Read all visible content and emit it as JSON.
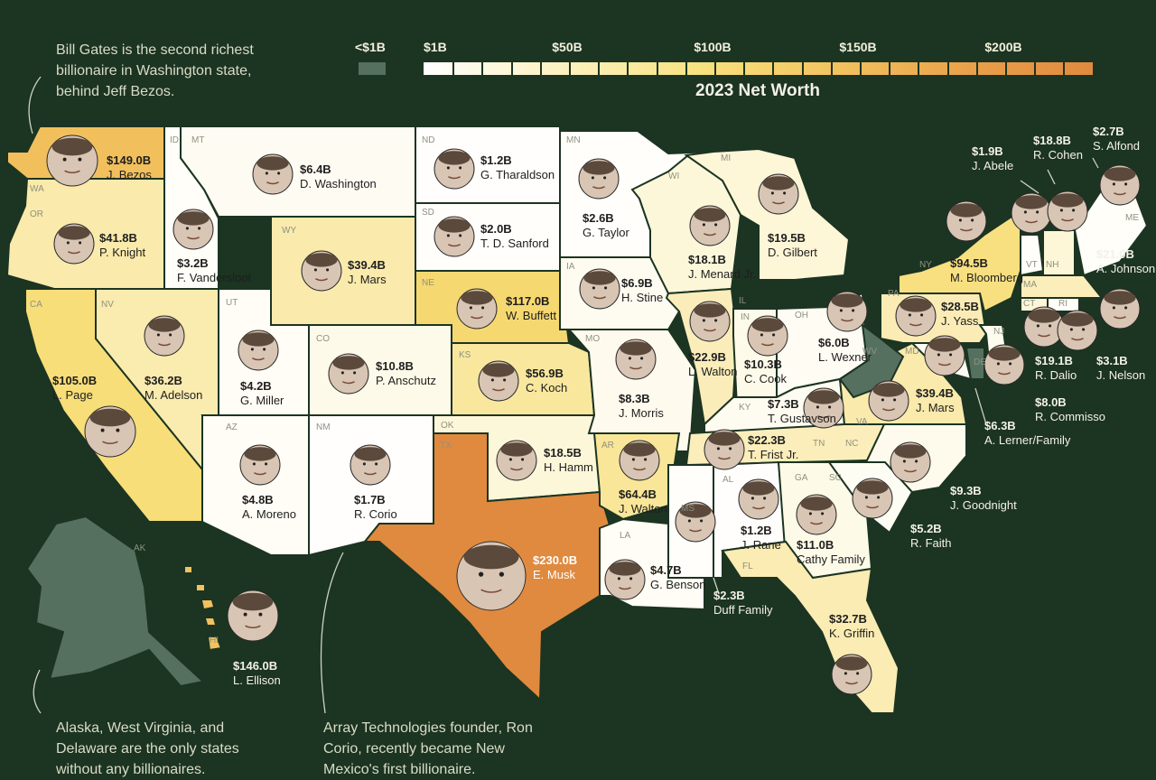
{
  "notes": {
    "gates": "Bill Gates is the second richest billionaire in Washington state, behind Jeff Bezos.",
    "alaska": "Alaska, West Virginia, and Delaware are the only states without any billionaires.",
    "corio": "Array Technologies founder, Ron Corio, recently became New Mexico's first billionaire."
  },
  "legend": {
    "title": "2023 Net Worth",
    "below_label": "<$1B",
    "ticks": [
      "$1B",
      "$50B",
      "$100B",
      "$150B",
      "$200B"
    ],
    "colors": {
      "none": "#55705f",
      "low": "#ffffff",
      "mid": "#f7dd74",
      "high": "#e08a3f",
      "background": "#1c3422"
    }
  },
  "states": [
    {
      "code": "WA",
      "net_worth": "$149.0B",
      "name": "J. Bezos"
    },
    {
      "code": "OR",
      "net_worth": "$41.8B",
      "name": "P. Knight"
    },
    {
      "code": "CA",
      "net_worth": "$105.0B",
      "name": "L. Page"
    },
    {
      "code": "NV",
      "net_worth": "$36.2B",
      "name": "M. Adelson"
    },
    {
      "code": "ID",
      "net_worth": "$3.2B",
      "name": "F. Vandersloot"
    },
    {
      "code": "MT",
      "net_worth": "$6.4B",
      "name": "D. Washington"
    },
    {
      "code": "WY",
      "net_worth": "$39.4B",
      "name": "J. Mars"
    },
    {
      "code": "UT",
      "net_worth": "$4.2B",
      "name": "G. Miller"
    },
    {
      "code": "CO",
      "net_worth": "$10.8B",
      "name": "P. Anschutz"
    },
    {
      "code": "AZ",
      "net_worth": "$4.8B",
      "name": "A. Moreno"
    },
    {
      "code": "NM",
      "net_worth": "$1.7B",
      "name": "R. Corio"
    },
    {
      "code": "ND",
      "net_worth": "$1.2B",
      "name": "G. Tharaldson"
    },
    {
      "code": "SD",
      "net_worth": "$2.0B",
      "name": "T. D. Sanford"
    },
    {
      "code": "NE",
      "net_worth": "$117.0B",
      "name": "W. Buffett"
    },
    {
      "code": "KS",
      "net_worth": "$56.9B",
      "name": "C. Koch"
    },
    {
      "code": "OK",
      "net_worth": "$18.5B",
      "name": "H. Hamm"
    },
    {
      "code": "TX",
      "net_worth": "$230.0B",
      "name": "E. Musk"
    },
    {
      "code": "MN",
      "net_worth": "$2.6B",
      "name": "G. Taylor"
    },
    {
      "code": "IA",
      "net_worth": "$6.9B",
      "name": "H. Stine"
    },
    {
      "code": "MO",
      "net_worth": "$8.3B",
      "name": "J. Morris"
    },
    {
      "code": "AR",
      "net_worth": "$64.4B",
      "name": "J. Walton"
    },
    {
      "code": "LA",
      "net_worth": "$4.7B",
      "name": "G. Benson"
    },
    {
      "code": "WI",
      "net_worth": "$18.1B",
      "name": "J. Menard Jr."
    },
    {
      "code": "IL",
      "net_worth": "$22.9B",
      "name": "L. Walton"
    },
    {
      "code": "MI",
      "net_worth": "$19.5B",
      "name": "D. Gilbert"
    },
    {
      "code": "IN",
      "net_worth": "$10.3B",
      "name": "C. Cook"
    },
    {
      "code": "OH",
      "net_worth": "$6.0B",
      "name": "L. Wexner"
    },
    {
      "code": "KY",
      "net_worth": "$7.3B",
      "name": "T. Gustavson"
    },
    {
      "code": "TN",
      "net_worth": "$22.3B",
      "name": "T. Frist Jr."
    },
    {
      "code": "MS",
      "net_worth": "$2.3B",
      "name": "Duff Family"
    },
    {
      "code": "AL",
      "net_worth": "$1.2B",
      "name": "J. Rane"
    },
    {
      "code": "GA",
      "net_worth": "$11.0B",
      "name": "Cathy Family"
    },
    {
      "code": "FL",
      "net_worth": "$32.7B",
      "name": "K. Griffin"
    },
    {
      "code": "SC",
      "net_worth": "$5.2B",
      "name": "R. Faith"
    },
    {
      "code": "NC",
      "net_worth": "$9.3B",
      "name": "J. Goodnight"
    },
    {
      "code": "VA",
      "net_worth": "$39.4B",
      "name": "J. Mars"
    },
    {
      "code": "MD",
      "net_worth": "$6.3B",
      "name": "A. Lerner/Family"
    },
    {
      "code": "PA",
      "net_worth": "$28.5B",
      "name": "J. Yass"
    },
    {
      "code": "NJ",
      "net_worth": "$8.0B",
      "name": "R. Commisso"
    },
    {
      "code": "NY",
      "net_worth": "$94.5B",
      "name": "M. Bloomberg"
    },
    {
      "code": "CT",
      "net_worth": "$19.1B",
      "name": "R. Dalio"
    },
    {
      "code": "RI",
      "net_worth": "$3.1B",
      "name": "J. Nelson"
    },
    {
      "code": "MA",
      "net_worth": "$21.0B",
      "name": "A. Johnson"
    },
    {
      "code": "VT",
      "net_worth": "$1.9B",
      "name": "J. Abele"
    },
    {
      "code": "NH",
      "net_worth": "$18.8B",
      "name": "R. Cohen"
    },
    {
      "code": "ME",
      "net_worth": "$2.7B",
      "name": "S. Alfond"
    },
    {
      "code": "HI",
      "net_worth": "$146.0B",
      "name": "L. Ellison"
    },
    {
      "code": "AK",
      "net_worth": "",
      "name": ""
    },
    {
      "code": "WV",
      "net_worth": "",
      "name": ""
    },
    {
      "code": "DE",
      "net_worth": "",
      "name": ""
    }
  ]
}
